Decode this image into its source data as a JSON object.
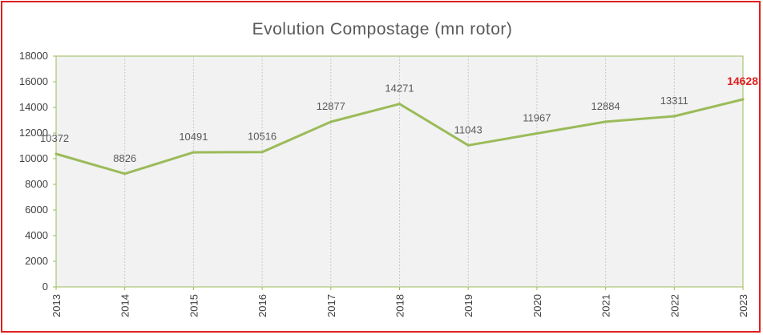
{
  "chart_data": {
    "type": "line",
    "title": "Evolution  Compostage  (mn rotor)",
    "categories": [
      "2013",
      "2014",
      "2015",
      "2016",
      "2017",
      "2018",
      "2019",
      "2020",
      "2021",
      "2022",
      "2023"
    ],
    "series": [
      {
        "values": [
          10372,
          8826,
          10491,
          10516,
          12877,
          14271,
          11043,
          11967,
          12884,
          13311,
          14628
        ],
        "color": "#9bbb59"
      }
    ],
    "ylim": [
      0,
      18000
    ],
    "yticks": [
      "0",
      "2000",
      "4000",
      "6000",
      "8000",
      "10000",
      "12000",
      "14000",
      "16000",
      "18000"
    ],
    "data_labels": [
      "10372",
      "8826",
      "10491",
      "10516",
      "12877",
      "14271",
      "11043",
      "11967",
      "12884",
      "13311",
      "14628"
    ],
    "highlight_label_index": 10,
    "highlight_color": "#e02020",
    "plot_background": "#f2f2f2",
    "plot_border_color": "#9bbb59",
    "vertical_gridlines": true,
    "horizontal_gridlines": false,
    "legend": "none"
  }
}
